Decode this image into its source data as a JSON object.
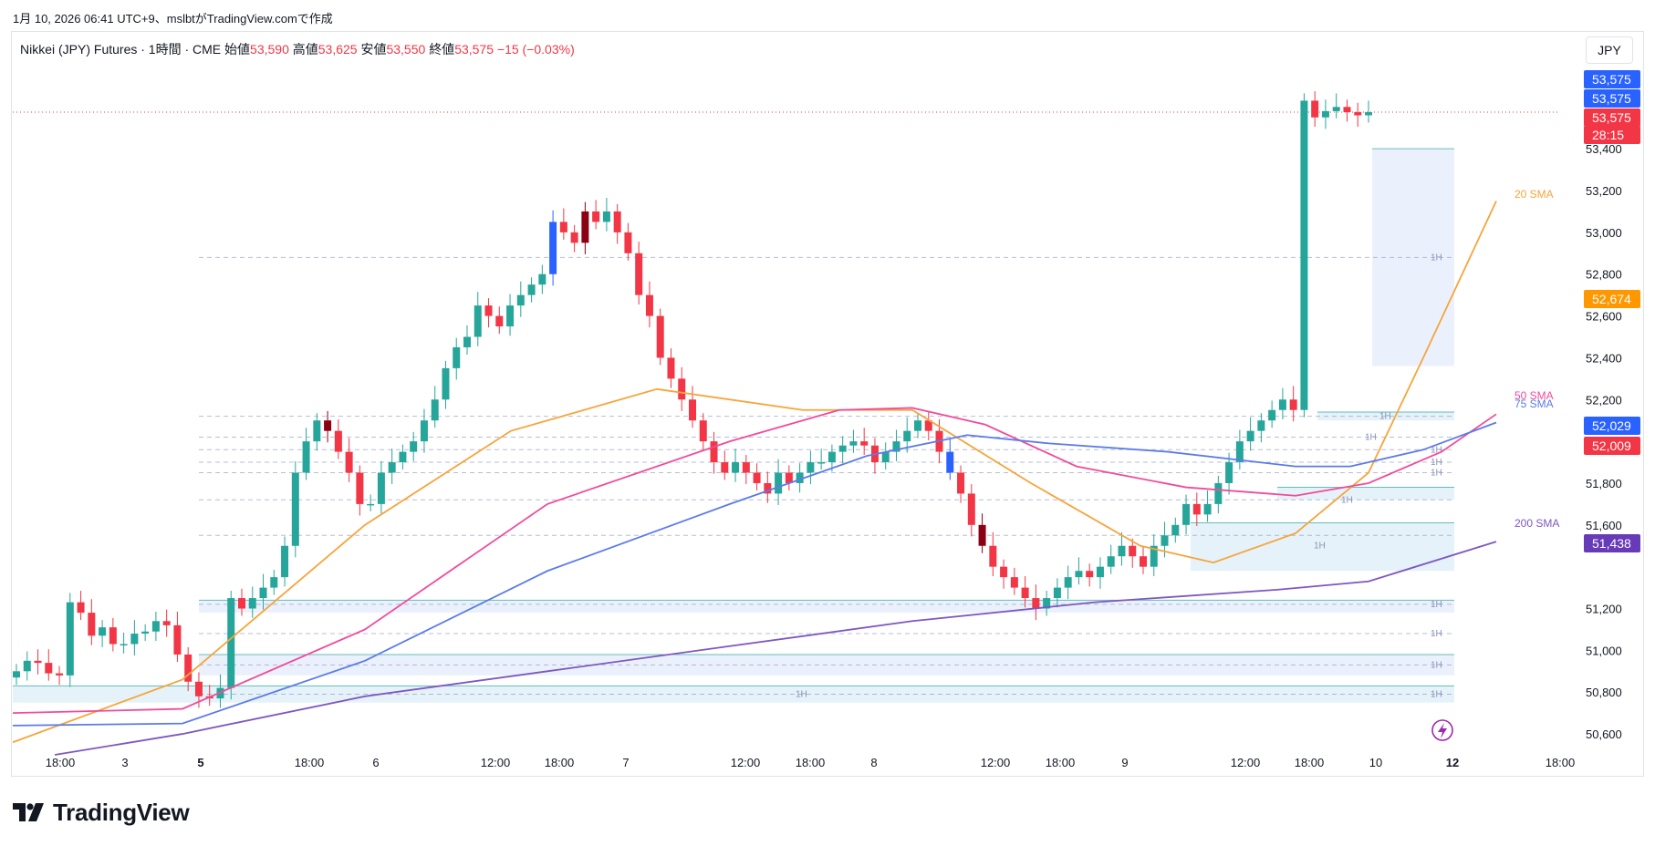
{
  "caption": "1月 10, 2026 06:41 UTC+9、mslbtがTradingView.comで作成",
  "legend": {
    "symbol": "Nikkei (JPY) Futures · 1時間 · CME",
    "open_label": "始値",
    "open": "53,590",
    "high_label": "高値",
    "high": "53,625",
    "low_label": "安値",
    "low": "53,550",
    "close_label": "終値",
    "close": "53,575",
    "change": "−15 (−0.03%)"
  },
  "currency": "JPY",
  "brand": "TradingView",
  "colors": {
    "up": "#26a69a",
    "down": "#f23645",
    "down_dark": "#8b0012",
    "up_blue": "#2962ff",
    "sma20": "#f7a43a",
    "sma50": "#f14b9a",
    "sma75": "#5b7bea",
    "sma200": "#7e57c2",
    "zone": "#e1f0f8",
    "zone_line": "#26a69a",
    "zone_tall": "#e8eefb"
  },
  "chart_data": {
    "type": "candlestick",
    "title": "Nikkei (JPY) Futures · 1時間 · CME",
    "ylim": [
      50500,
      53850
    ],
    "y_ticks": [
      "53,400",
      "53,200",
      "53,000",
      "52,800",
      "52,600",
      "52,400",
      "52,200",
      "51,800",
      "51,600",
      "51,200",
      "51,000",
      "50,800",
      "50,600"
    ],
    "x_ticks": [
      "18:00",
      "3",
      "5",
      "18:00",
      "6",
      "12:00",
      "18:00",
      "7",
      "12:00",
      "18:00",
      "8",
      "12:00",
      "18:00",
      "9",
      "12:00",
      "18:00",
      "10",
      "12",
      "18:00"
    ],
    "price_badges": [
      {
        "text": "53,575",
        "color": "#2962ff",
        "value": 53575
      },
      {
        "text": "53,575",
        "color": "#2962ff",
        "value": 53575
      },
      {
        "text": "53,575",
        "color": "#f23645",
        "value": 53575
      },
      {
        "text": "28:15",
        "color": "#f23645",
        "value": 53575
      },
      {
        "text": "52,674",
        "color": "#ff9800",
        "value": 52674
      },
      {
        "text": "52,029",
        "color": "#2962ff",
        "value": 52029
      },
      {
        "text": "52,009",
        "color": "#f23645",
        "value": 52009
      },
      {
        "text": "51,438",
        "color": "#673ab7",
        "value": 51438
      }
    ],
    "series_labels": [
      {
        "name": "20 SMA",
        "color": "#f7a43a",
        "value": 53180
      },
      {
        "name": "50 SMA",
        "color": "#f14b9a",
        "value": 52135
      },
      {
        "name": "75 SMA",
        "color": "#5b7bea",
        "value": 52100
      },
      {
        "name": "200 SMA",
        "color": "#7e57c2",
        "value": 51520
      }
    ],
    "candle_values": [
      50900,
      50950,
      50940,
      50890,
      50880,
      51230,
      51180,
      51070,
      51110,
      51030,
      51030,
      51080,
      51090,
      51140,
      51120,
      50980,
      50850,
      50780,
      50770,
      50820,
      51250,
      51200,
      51250,
      51300,
      51350,
      51500,
      51850,
      52000,
      52100,
      52050,
      51950,
      51850,
      51700,
      51700,
      51850,
      51900,
      51950,
      52000,
      52100,
      52200,
      52350,
      52450,
      52500,
      52650,
      52600,
      52550,
      52650,
      52700,
      52750,
      52800,
      53050,
      53000,
      52950,
      53100,
      53050,
      53100,
      53000,
      52900,
      52700,
      52600,
      52400,
      52300,
      52200,
      52100,
      52000,
      51900,
      51850,
      51900,
      51850,
      51800,
      51750,
      51850,
      51800,
      51850,
      51900,
      51900,
      51950,
      51980,
      52000,
      51980,
      51900,
      51950,
      52000,
      52050,
      52100,
      52050,
      51950,
      51850,
      51750,
      51600,
      51500,
      51400,
      51350,
      51300,
      51250,
      51200,
      51250,
      51300,
      51350,
      51380,
      51350,
      51400,
      51450,
      51500,
      51450,
      51400,
      51500,
      51550,
      51600,
      51700,
      51650,
      51700,
      51800,
      51900,
      52000,
      52050,
      52100,
      52150,
      52200,
      52150,
      53630,
      53550,
      53580,
      53600,
      53575,
      53560,
      53575
    ]
  },
  "badges_1h": [
    "1H",
    "1H",
    "1H",
    "1H",
    "1H",
    "1H",
    "1H",
    "1H",
    "1H",
    "1H",
    "1H",
    "1H",
    "1H"
  ]
}
